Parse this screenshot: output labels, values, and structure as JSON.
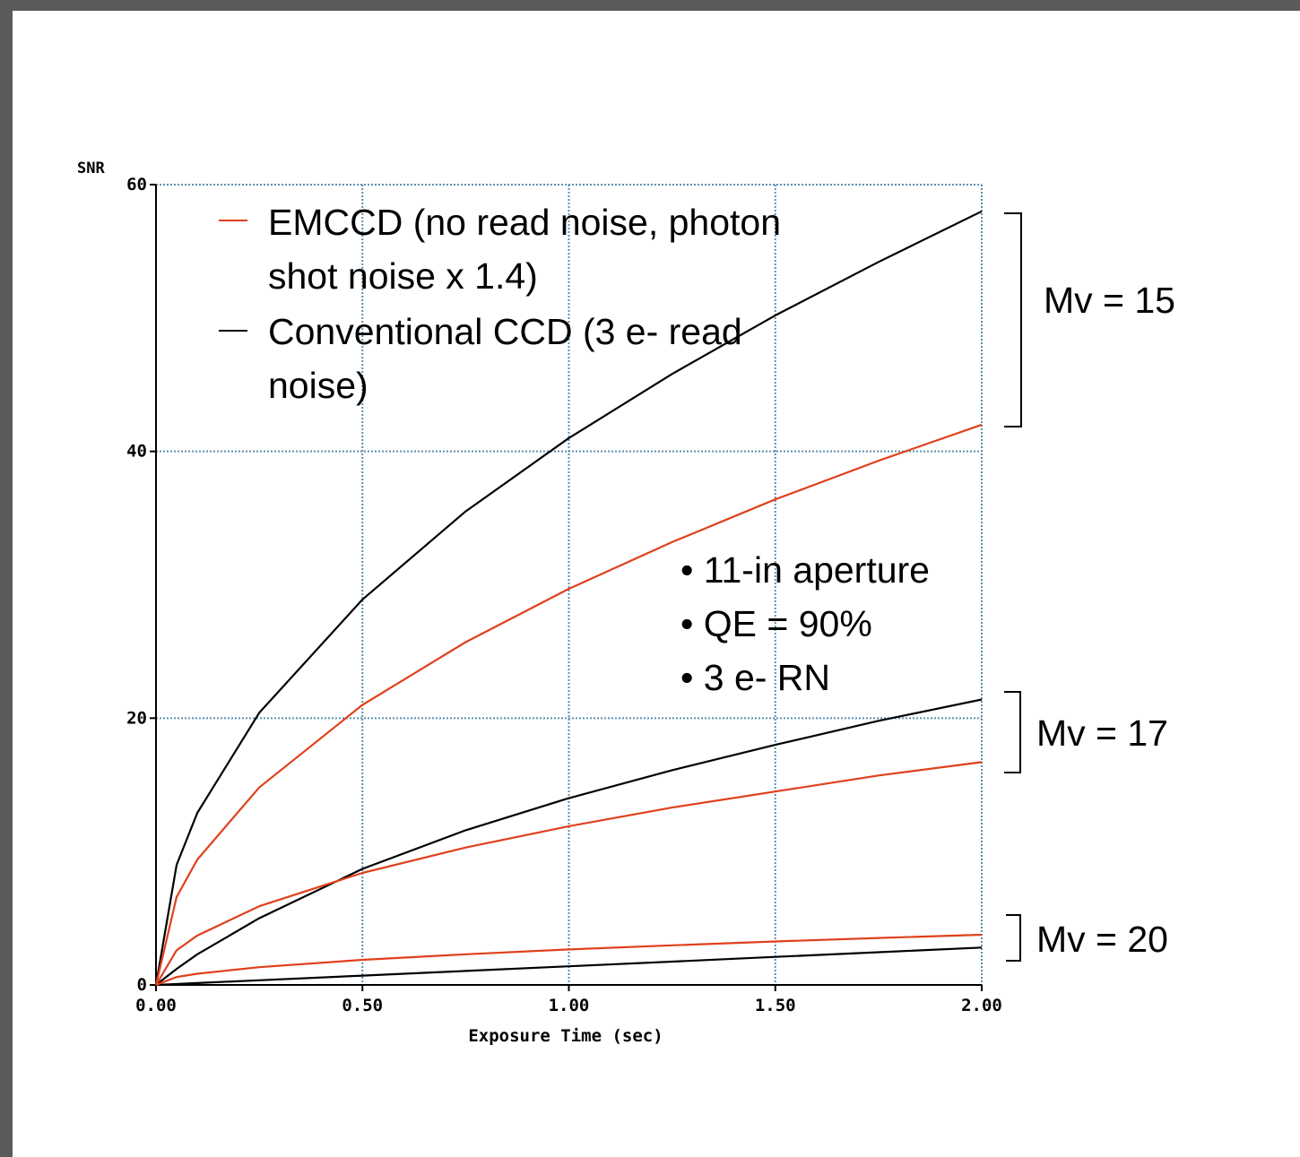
{
  "chart_data": {
    "type": "line",
    "ylabel": "SNR",
    "xlabel": "Exposure Time (sec)",
    "xlim": [
      0,
      2
    ],
    "ylim": [
      0,
      60
    ],
    "x_ticks": [
      "0.00",
      "0.50",
      "1.00",
      "1.50",
      "2.00"
    ],
    "y_ticks": [
      "0",
      "20",
      "40",
      "60"
    ],
    "grid": true,
    "legend": {
      "placement": "top-left",
      "entries": [
        {
          "line1": "EMCCD (no read noise, photon",
          "line2": "shot noise x 1.4)",
          "color": "#e0401c"
        },
        {
          "line1": "Conventional CCD (3 e- read",
          "line2": "noise)",
          "color": "#000000"
        }
      ]
    },
    "notes": [
      "• 11-in aperture",
      "• QE = 90%",
      "• 3 e- RN"
    ],
    "brackets": [
      {
        "label": "Mv = 15",
        "ymax": 58.0,
        "ymin": 42.0
      },
      {
        "label": "Mv = 17",
        "ymax": 22.0,
        "ymin": 15.8
      },
      {
        "label": "Mv = 20",
        "ymax": 5.2,
        "ymin": 1.6
      }
    ],
    "series": [
      {
        "group": "Mv = 15",
        "kind": "Conventional CCD",
        "color": "#000000",
        "x": [
          0,
          0.05,
          0.1,
          0.25,
          0.5,
          0.75,
          1.0,
          1.25,
          1.5,
          1.75,
          2.0
        ],
        "y": [
          0,
          9.0,
          12.9,
          20.4,
          28.9,
          35.5,
          41.0,
          45.8,
          50.2,
          54.2,
          58.0
        ]
      },
      {
        "group": "Mv = 15",
        "kind": "EMCCD",
        "color": "#e0401c",
        "x": [
          0,
          0.05,
          0.1,
          0.25,
          0.5,
          0.75,
          1.0,
          1.25,
          1.5,
          1.75,
          2.0
        ],
        "y": [
          0,
          6.6,
          9.4,
          14.8,
          21.0,
          25.7,
          29.7,
          33.2,
          36.4,
          39.3,
          42.0
        ]
      },
      {
        "group": "Mv = 17",
        "kind": "Conventional CCD",
        "color": "#000000",
        "x": [
          0,
          0.05,
          0.1,
          0.25,
          0.5,
          0.75,
          1.0,
          1.25,
          1.5,
          1.75,
          2.0
        ],
        "y": [
          0,
          1.2,
          2.3,
          5.0,
          8.7,
          11.6,
          14.0,
          16.1,
          18.0,
          19.8,
          21.4
        ]
      },
      {
        "group": "Mv = 17",
        "kind": "EMCCD",
        "color": "#e0401c",
        "x": [
          0,
          0.05,
          0.1,
          0.25,
          0.5,
          0.75,
          1.0,
          1.25,
          1.5,
          1.75,
          2.0
        ],
        "y": [
          0,
          2.6,
          3.7,
          5.9,
          8.4,
          10.3,
          11.9,
          13.3,
          14.5,
          15.7,
          16.7
        ]
      },
      {
        "group": "Mv = 20",
        "kind": "Conventional CCD",
        "color": "#000000",
        "x": [
          0,
          0.05,
          0.1,
          0.25,
          0.5,
          0.75,
          1.0,
          1.25,
          1.5,
          1.75,
          2.0
        ],
        "y": [
          0,
          0.07,
          0.14,
          0.35,
          0.7,
          1.05,
          1.4,
          1.75,
          2.1,
          2.45,
          2.8
        ]
      },
      {
        "group": "Mv = 20",
        "kind": "EMCCD",
        "color": "#e0401c",
        "x": [
          0,
          0.05,
          0.1,
          0.25,
          0.5,
          0.75,
          1.0,
          1.25,
          1.5,
          1.75,
          2.0
        ],
        "y": [
          0,
          0.59,
          0.84,
          1.33,
          1.88,
          2.3,
          2.66,
          2.97,
          3.26,
          3.52,
          3.76
        ]
      }
    ]
  }
}
